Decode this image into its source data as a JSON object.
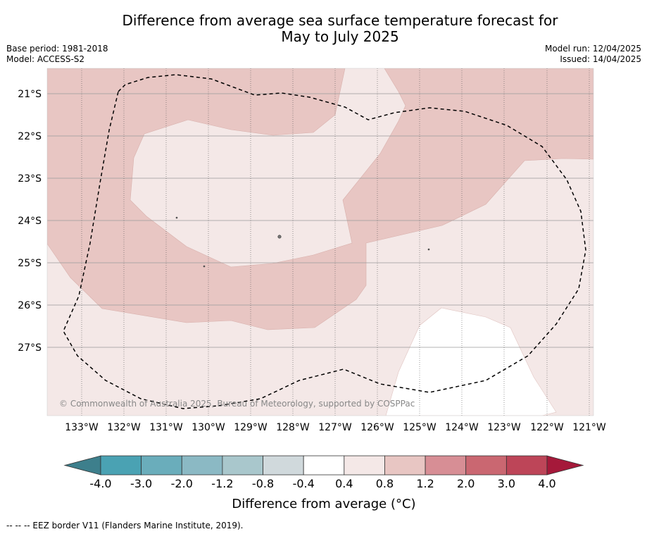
{
  "title": {
    "line1": "Difference from average sea surface temperature forecast for",
    "line2": "May to July 2025"
  },
  "meta_left": {
    "base_period": "Base period: 1981-2018",
    "model": "Model: ACCESS-S2"
  },
  "meta_right": {
    "model_run": "Model run: 12/04/2025",
    "issued": "Issued: 14/04/2025"
  },
  "map": {
    "lat_labels": [
      "21°S",
      "22°S",
      "23°S",
      "24°S",
      "25°S",
      "26°S",
      "27°S"
    ],
    "lon_labels": [
      "133°W",
      "132°W",
      "131°W",
      "130°W",
      "129°W",
      "128°W",
      "127°W",
      "126°W",
      "125°W",
      "124°W",
      "123°W",
      "122°W",
      "121°W"
    ],
    "copyright": "© Commonwealth of Australia 2025, Bureau of Meteorology, supported by COSPPac",
    "colors": {
      "band_0_4_to_0_8": "#f4e8e7",
      "band_0_8_to_1_2": "#e8c6c3",
      "below_0_4": "#ffffff",
      "eez_border": "#000000"
    }
  },
  "colorbar": {
    "ticks": [
      "-4.0",
      "-3.0",
      "-2.0",
      "-1.2",
      "-0.8",
      "-0.4",
      "0.4",
      "0.8",
      "1.2",
      "2.0",
      "3.0",
      "4.0"
    ],
    "colors": [
      "#4aa2b3",
      "#6aadbb",
      "#8bb9c4",
      "#a9c7cc",
      "#d0d9dc",
      "#ffffff",
      "#f4e8e7",
      "#e8c6c3",
      "#d78e95",
      "#ca6771",
      "#bd4558"
    ],
    "low_extend_color": "#3d7f8c",
    "high_extend_color": "#a5193a",
    "label": "Difference from average (°C)"
  },
  "footer": "--  --  -- EEZ border V11 (Flanders Marine Institute, 2019)."
}
